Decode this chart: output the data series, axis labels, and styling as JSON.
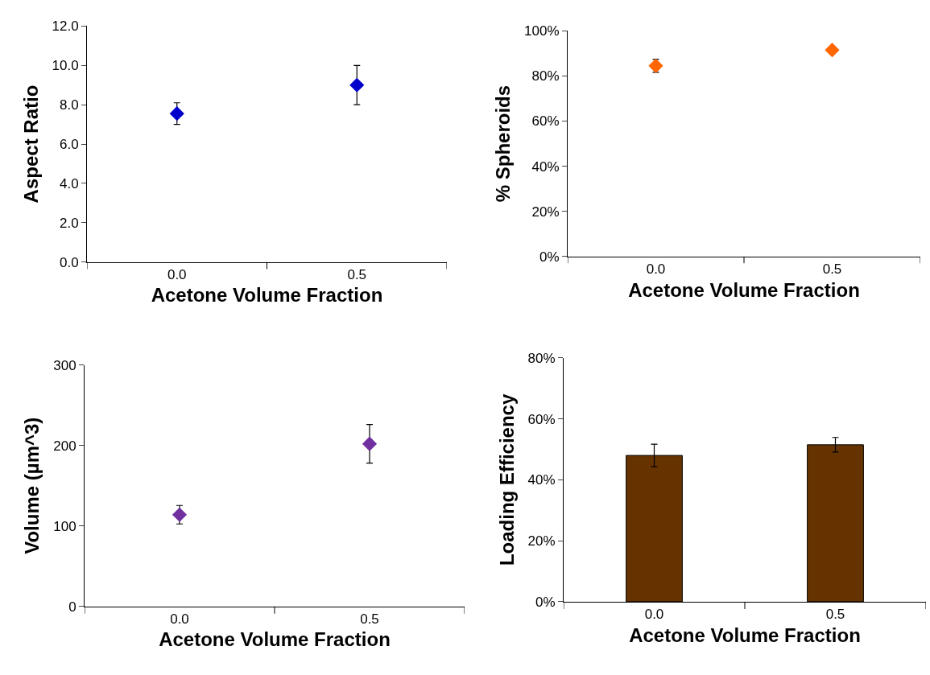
{
  "chart_data": [
    {
      "type": "scatter",
      "categories": [
        "0.0",
        "0.5"
      ],
      "values": [
        7.55,
        9.0
      ],
      "errors": [
        0.55,
        1.0
      ],
      "color": "#0000cc",
      "marker": "diamond",
      "ylim": [
        0,
        12
      ],
      "yticks": [
        {
          "value": 0,
          "label": "0.0"
        },
        {
          "value": 2,
          "label": "2.0"
        },
        {
          "value": 4,
          "label": "4.0"
        },
        {
          "value": 6,
          "label": "6.0"
        },
        {
          "value": 8,
          "label": "8.0"
        },
        {
          "value": 10,
          "label": "10.0"
        },
        {
          "value": 12,
          "label": "12.0"
        }
      ],
      "xlabel": "Acetone Volume Fraction",
      "ylabel": "Aspect Ratio"
    },
    {
      "type": "scatter",
      "categories": [
        "0.0",
        "0.5"
      ],
      "values": [
        84.5,
        91.5
      ],
      "errors": [
        2.9,
        null
      ],
      "color": "#ff6600",
      "marker": "diamond",
      "ylim": [
        0,
        100
      ],
      "yticks": [
        {
          "value": 0,
          "label": "0%"
        },
        {
          "value": 20,
          "label": "20%"
        },
        {
          "value": 40,
          "label": "40%"
        },
        {
          "value": 60,
          "label": "60%"
        },
        {
          "value": 80,
          "label": "80%"
        },
        {
          "value": 100,
          "label": "100%"
        }
      ],
      "xlabel": "Acetone Volume Fraction",
      "ylabel": "% Spheroids"
    },
    {
      "type": "scatter",
      "categories": [
        "0.0",
        "0.5"
      ],
      "values": [
        114,
        202
      ],
      "errors": [
        11.5,
        24
      ],
      "color": "#7030a0",
      "marker": "diamond",
      "ylim": [
        0,
        300
      ],
      "yticks": [
        0,
        100,
        200,
        300
      ],
      "xlabel": "Acetone Volume Fraction",
      "ylabel": "Volume (µm^3)"
    },
    {
      "type": "bar",
      "categories": [
        "0.0",
        "0.5"
      ],
      "values": [
        48.0,
        51.5
      ],
      "errors": [
        3.7,
        2.4
      ],
      "color": "#663300",
      "ylim": [
        0,
        80
      ],
      "yticks": [
        {
          "value": 0,
          "label": "0%"
        },
        {
          "value": 20,
          "label": "20%"
        },
        {
          "value": 40,
          "label": "40%"
        },
        {
          "value": 60,
          "label": "60%"
        },
        {
          "value": 80,
          "label": "80%"
        }
      ],
      "xlabel": "Acetone Volume Fraction",
      "ylabel": "Loading Efficiency"
    }
  ]
}
